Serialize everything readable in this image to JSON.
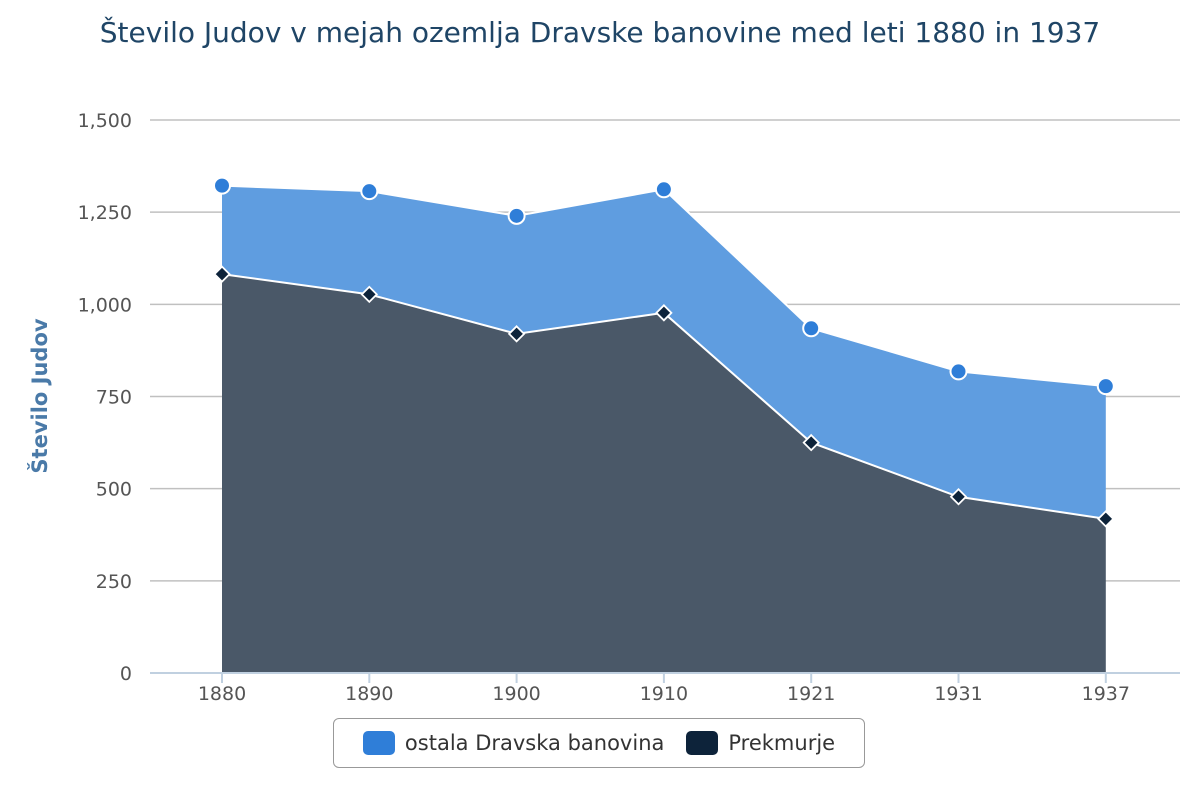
{
  "chart_data": {
    "type": "area",
    "stacked": true,
    "title": "Število Judov v mejah ozemlja Dravske banovine med leti 1880 in 1937",
    "xlabel": "",
    "ylabel": "Število Judov",
    "ylim": [
      0,
      1500
    ],
    "yticks": [
      0,
      250,
      500,
      750,
      1000,
      1250,
      1500
    ],
    "ytick_labels": [
      "0",
      "250",
      "500",
      "750",
      "1,000",
      "1,250",
      "1,500"
    ],
    "categories": [
      "1880",
      "1890",
      "1900",
      "1910",
      "1921",
      "1931",
      "1937"
    ],
    "series": [
      {
        "name": "ostala Dravska banovina",
        "color": "#2f7ed8",
        "marker": "circle",
        "values": [
          240,
          280,
          320,
          335,
          310,
          340,
          360
        ]
      },
      {
        "name": "Prekmurje",
        "color": "#0d233a",
        "marker": "diamond",
        "values": [
          1082,
          1027,
          920,
          977,
          625,
          478,
          418
        ]
      }
    ],
    "legend": "bottom-center",
    "grid": true
  }
}
